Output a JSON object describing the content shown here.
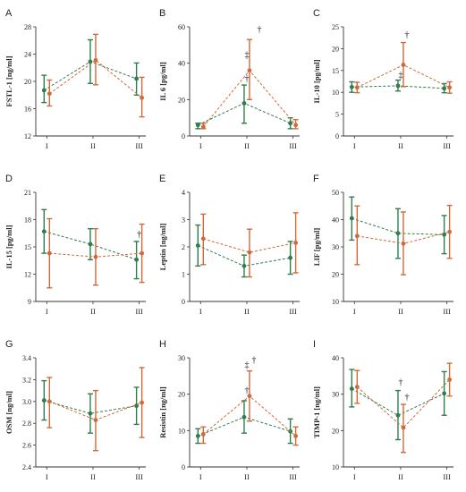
{
  "colors": {
    "green": "#2f7d4f",
    "orange": "#cf6a3a",
    "axis": "#333333"
  },
  "chart_data": [
    {
      "panel": "A",
      "type": "line",
      "ylabel": "FSTL-1 [ng/ml]",
      "categories": [
        "I",
        "II",
        "III"
      ],
      "ylim": [
        12,
        28
      ],
      "yticks": [
        12,
        16,
        20,
        24,
        28
      ],
      "series": [
        {
          "color": "green",
          "values": [
            18.7,
            22.9,
            20.4
          ],
          "err_low": [
            16.9,
            19.7,
            18.0
          ],
          "err_high": [
            20.9,
            26.1,
            22.7
          ]
        },
        {
          "color": "orange",
          "values": [
            18.2,
            23.1,
            17.6
          ],
          "err_low": [
            16.4,
            19.5,
            14.8
          ],
          "err_high": [
            20.2,
            26.9,
            20.6
          ]
        }
      ],
      "annotations": []
    },
    {
      "panel": "B",
      "type": "line",
      "ylabel": "IL 6 [pg/ml]",
      "categories": [
        "I",
        "II",
        "III"
      ],
      "ylim": [
        0,
        60
      ],
      "yticks": [
        0,
        20,
        40,
        60
      ],
      "series": [
        {
          "color": "green",
          "values": [
            6,
            18,
            7
          ],
          "err_low": [
            4,
            7,
            4
          ],
          "err_high": [
            7,
            28,
            10
          ]
        },
        {
          "color": "orange",
          "values": [
            5,
            36,
            6
          ],
          "err_low": [
            4,
            20,
            4
          ],
          "err_high": [
            7,
            53,
            9
          ]
        }
      ],
      "annotations": [
        {
          "text": "†",
          "cat": 1,
          "y": 30,
          "color": "green"
        },
        {
          "text": "‡",
          "cat": 1,
          "y": 43,
          "color": "green"
        },
        {
          "text": "†",
          "cat": 1,
          "y": 57,
          "color": "orange",
          "dx": 14
        }
      ]
    },
    {
      "panel": "C",
      "type": "line",
      "ylabel": "IL-10 [pg/ml]",
      "categories": [
        "I",
        "II",
        "III"
      ],
      "ylim": [
        0,
        25
      ],
      "yticks": [
        0,
        5,
        10,
        15,
        20,
        25
      ],
      "series": [
        {
          "color": "green",
          "values": [
            11.2,
            11.5,
            10.9
          ],
          "err_low": [
            10.0,
            10.3,
            9.9
          ],
          "err_high": [
            12.4,
            12.8,
            12.0
          ]
        },
        {
          "color": "orange",
          "values": [
            11.1,
            16.3,
            11.1
          ],
          "err_low": [
            9.9,
            11.3,
            9.8
          ],
          "err_high": [
            12.3,
            21.4,
            12.4
          ]
        }
      ],
      "annotations": [
        {
          "text": "‡",
          "cat": 1,
          "y": 13.3,
          "color": "green"
        },
        {
          "text": "†",
          "cat": 1,
          "y": 22.5,
          "color": "orange",
          "dx": 7
        }
      ]
    },
    {
      "panel": "D",
      "type": "line",
      "ylabel": "IL-15 [pg/ml]",
      "categories": [
        "I",
        "II",
        "III"
      ],
      "ylim": [
        9,
        21
      ],
      "yticks": [
        9,
        12,
        15,
        18,
        21
      ],
      "series": [
        {
          "color": "green",
          "values": [
            16.7,
            15.3,
            13.6
          ],
          "err_low": [
            14.3,
            13.6,
            11.5
          ],
          "err_high": [
            19.1,
            17.0,
            15.6
          ]
        },
        {
          "color": "orange",
          "values": [
            14.3,
            13.9,
            14.3
          ],
          "err_low": [
            10.5,
            10.8,
            11.1
          ],
          "err_high": [
            18.1,
            17.0,
            17.5
          ]
        }
      ],
      "annotations": [
        {
          "text": "†",
          "cat": 2,
          "y": 16.1,
          "color": "green"
        }
      ]
    },
    {
      "panel": "E",
      "type": "line",
      "ylabel": "Leptin [ng/ml]",
      "categories": [
        "I",
        "II",
        "III"
      ],
      "ylim": [
        0,
        4
      ],
      "yticks": [
        0,
        1,
        2,
        3,
        4
      ],
      "series": [
        {
          "color": "green",
          "values": [
            2.05,
            1.3,
            1.6
          ],
          "err_low": [
            1.3,
            0.9,
            1.0
          ],
          "err_high": [
            2.8,
            1.7,
            2.2
          ]
        },
        {
          "color": "orange",
          "values": [
            2.3,
            1.8,
            2.15
          ],
          "err_low": [
            1.35,
            0.9,
            1.05
          ],
          "err_high": [
            3.2,
            2.65,
            3.25
          ]
        }
      ],
      "annotations": []
    },
    {
      "panel": "F",
      "type": "line",
      "ylabel": "LIF [pg/ml]",
      "categories": [
        "I",
        "II",
        "III"
      ],
      "ylim": [
        10,
        50
      ],
      "yticks": [
        10,
        20,
        30,
        40,
        50
      ],
      "series": [
        {
          "color": "green",
          "values": [
            40.5,
            35.0,
            34.5
          ],
          "err_low": [
            32.5,
            25.8,
            27.5
          ],
          "err_high": [
            48.3,
            44.0,
            41.5
          ]
        },
        {
          "color": "orange",
          "values": [
            34.0,
            31.2,
            35.5
          ],
          "err_low": [
            23.5,
            19.8,
            25.8
          ],
          "err_high": [
            45.0,
            42.8,
            45.2
          ]
        }
      ],
      "annotations": []
    },
    {
      "panel": "G",
      "type": "line",
      "ylabel": "OSM [ng/ml]",
      "categories": [
        "I",
        "II",
        "III"
      ],
      "ylim": [
        2.4,
        3.4
      ],
      "yticks": [
        2.4,
        2.6,
        2.8,
        3.0,
        3.2,
        3.4
      ],
      "series": [
        {
          "color": "green",
          "values": [
            3.01,
            2.89,
            2.96
          ],
          "err_low": [
            2.83,
            2.71,
            2.79
          ],
          "err_high": [
            3.19,
            3.07,
            3.13
          ]
        },
        {
          "color": "orange",
          "values": [
            3.0,
            2.83,
            2.99
          ],
          "err_low": [
            2.76,
            2.55,
            2.67
          ],
          "err_high": [
            3.22,
            3.1,
            3.31
          ]
        }
      ],
      "annotations": []
    },
    {
      "panel": "H",
      "type": "line",
      "ylabel": "Resistin [ng/ml]",
      "categories": [
        "I",
        "II",
        "III"
      ],
      "ylim": [
        0,
        30
      ],
      "yticks": [
        0,
        10,
        20,
        30
      ],
      "series": [
        {
          "color": "green",
          "values": [
            8.5,
            13.7,
            9.8
          ],
          "err_low": [
            6.5,
            9.3,
            6.5
          ],
          "err_high": [
            10.5,
            18.2,
            13.2
          ]
        },
        {
          "color": "orange",
          "values": [
            9.0,
            19.5,
            8.5
          ],
          "err_low": [
            6.5,
            12.6,
            6.0
          ],
          "err_high": [
            11.0,
            26.4,
            11.0
          ]
        }
      ],
      "annotations": [
        {
          "text": "†",
          "cat": 1,
          "y": 20.3,
          "color": "green"
        },
        {
          "text": "‡",
          "cat": 1,
          "y": 27.3,
          "color": "green"
        },
        {
          "text": "†",
          "cat": 1,
          "y": 28.6,
          "color": "orange",
          "dx": 8
        }
      ]
    },
    {
      "panel": "I",
      "type": "line",
      "ylabel": "TIMP-1 [ng/ml]",
      "categories": [
        "I",
        "II",
        "III"
      ],
      "ylim": [
        10,
        40
      ],
      "yticks": [
        10,
        20,
        30,
        40
      ],
      "series": [
        {
          "color": "green",
          "values": [
            31.5,
            24.2,
            30.2
          ],
          "err_low": [
            26.5,
            17.5,
            24.2
          ],
          "err_high": [
            36.8,
            31.0,
            36.2
          ]
        },
        {
          "color": "orange",
          "values": [
            32.0,
            20.8,
            34.0
          ],
          "err_low": [
            27.5,
            14.0,
            29.5
          ],
          "err_high": [
            36.5,
            27.2,
            38.5
          ]
        }
      ],
      "annotations": [
        {
          "text": "†",
          "cat": 1,
          "y": 32.5,
          "color": "green"
        },
        {
          "text": "†",
          "cat": 1,
          "y": 28.4,
          "color": "orange",
          "dx": 7
        }
      ]
    }
  ]
}
